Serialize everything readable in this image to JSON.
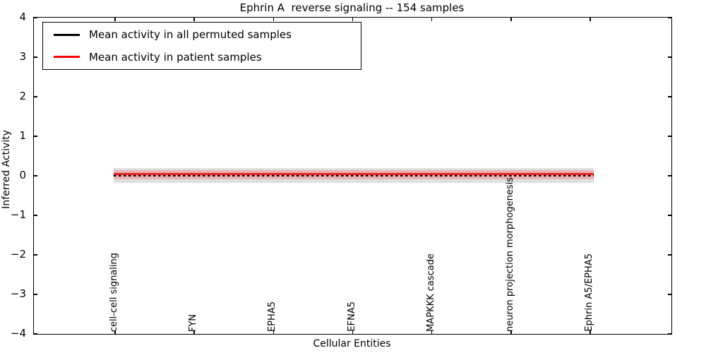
{
  "title": "Ephrin A  reverse signaling -- 154 samples",
  "legend": {
    "items": [
      {
        "label": "Mean activity in all permuted samples",
        "color": "#000000"
      },
      {
        "label": "Mean activity in patient samples",
        "color": "#ff0000"
      }
    ],
    "position": "upper left"
  },
  "axes": {
    "ylabel": "Inferred Activity",
    "xlabel": "Cellular Entities",
    "yticks": [
      "4",
      "3",
      "2",
      "1",
      "0",
      "−1",
      "−2",
      "−3",
      "−4"
    ],
    "ylim": [
      -4,
      4
    ]
  },
  "chart_data": {
    "type": "line",
    "title": "Ephrin A  reverse signaling -- 154 samples",
    "xlabel": "Cellular Entities",
    "ylabel": "Inferred Activity",
    "ylim": [
      -4,
      4
    ],
    "grid": false,
    "legend_position": "upper left",
    "categories": [
      "cell-cell signaling",
      "FYN",
      "EPHA5",
      "EFNA5",
      "MAPKKK cascade",
      "neuron projection morphogenesis",
      "Ephrin A5/EPHA5"
    ],
    "series": [
      {
        "name": "Mean activity in all permuted samples",
        "color": "#000000",
        "style": "dash-markers",
        "values": [
          0.0,
          0.0,
          0.0,
          0.0,
          0.0,
          0.0,
          0.0
        ]
      },
      {
        "name": "Mean activity in patient samples",
        "color": "#e62222",
        "style": "solid",
        "values": [
          0.03,
          0.03,
          0.03,
          0.03,
          0.03,
          0.03,
          0.03
        ]
      }
    ],
    "bands": [
      {
        "name": "permuted-std-band",
        "color": "#808080",
        "range": [
          -0.18,
          0.18
        ]
      },
      {
        "name": "patient-std-band",
        "color": "#ff4646",
        "range": [
          -0.09,
          0.13
        ]
      }
    ]
  }
}
